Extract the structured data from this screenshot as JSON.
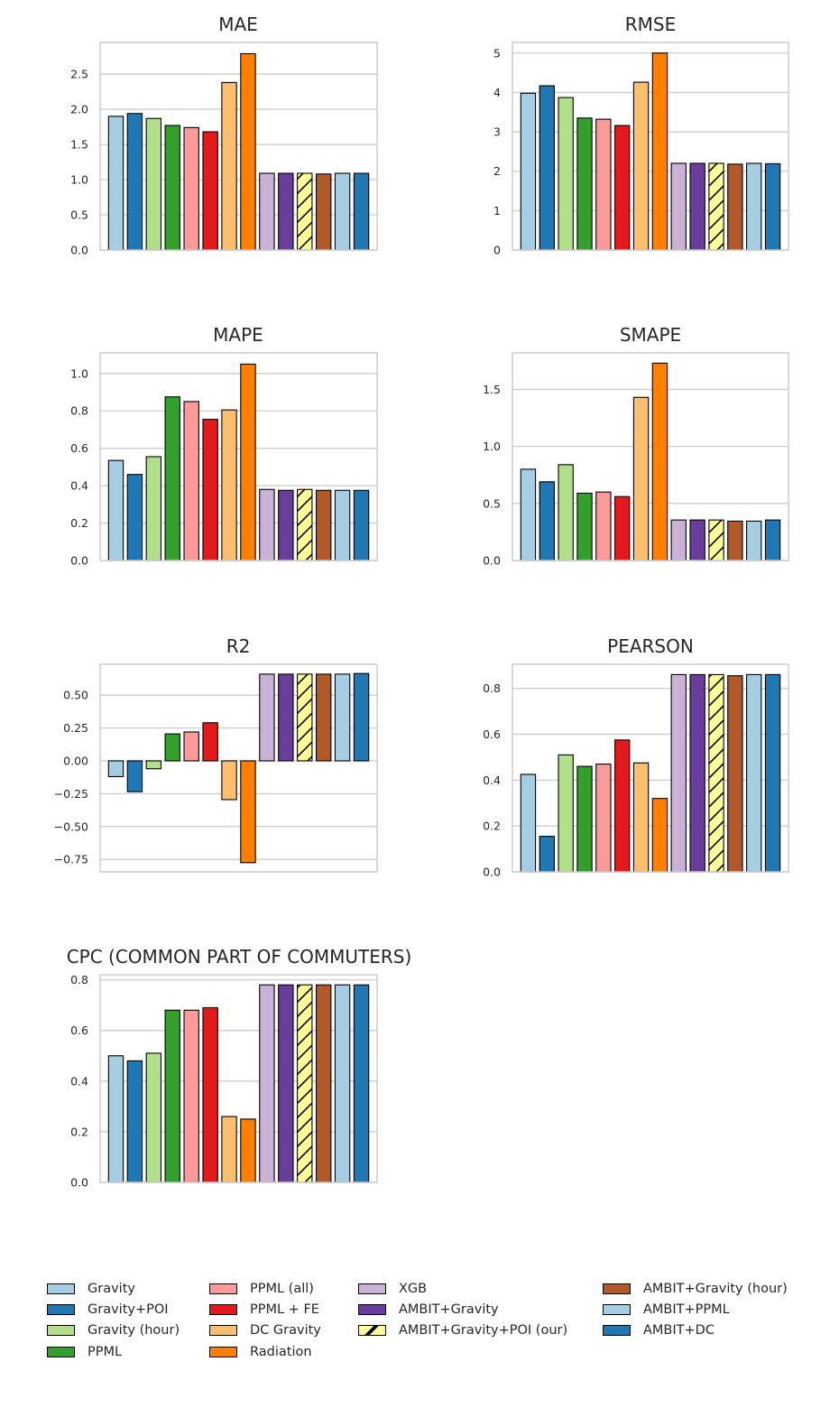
{
  "series_colors": [
    "#a6cee3",
    "#1f78b4",
    "#b2df8a",
    "#33a02c",
    "#fb9a99",
    "#e31a1c",
    "#fdbf6f",
    "#ff7f00",
    "#cab2d6",
    "#6a3d9a",
    "#ffff99",
    "#b15928",
    "#a6cee3",
    "#1f78b4"
  ],
  "legend": [
    {
      "label": "Gravity",
      "color": "#a6cee3"
    },
    {
      "label": "Gravity+POI",
      "color": "#1f78b4"
    },
    {
      "label": "Gravity (hour)",
      "color": "#b2df8a"
    },
    {
      "label": "PPML",
      "color": "#33a02c"
    },
    {
      "label": "PPML (all)",
      "color": "#fb9a99"
    },
    {
      "label": "PPML + FE",
      "color": "#e31a1c"
    },
    {
      "label": "DC Gravity",
      "color": "#fdbf6f"
    },
    {
      "label": "Radiation",
      "color": "#ff7f00"
    },
    {
      "label": "XGB",
      "color": "#cab2d6"
    },
    {
      "label": "AMBIT+Gravity",
      "color": "#6a3d9a"
    },
    {
      "label": "AMBIT+Gravity+POI (our)",
      "color": "#ffff99",
      "hatch": true
    },
    {
      "label": "AMBIT+Gravity (hour)",
      "color": "#b15928"
    },
    {
      "label": "AMBIT+PPML",
      "color": "#a6cee3"
    },
    {
      "label": "AMBIT+DC",
      "color": "#1f78b4"
    }
  ],
  "chart_data": [
    {
      "type": "bar",
      "title": "MAE",
      "categories": [
        "Gravity",
        "Gravity+POI",
        "Gravity (hour)",
        "PPML",
        "PPML (all)",
        "PPML + FE",
        "DC Gravity",
        "Radiation",
        "XGB",
        "AMBIT+Gravity",
        "AMBIT+Gravity+POI (our)",
        "AMBIT+Gravity (hour)",
        "AMBIT+PPML",
        "AMBIT+DC"
      ],
      "values": [
        1.9,
        1.94,
        1.87,
        1.77,
        1.74,
        1.68,
        2.38,
        2.79,
        1.09,
        1.09,
        1.09,
        1.08,
        1.09,
        1.09
      ],
      "ylim": [
        0,
        2.95
      ],
      "yticks": [
        0.0,
        0.5,
        1.0,
        1.5,
        2.0,
        2.5
      ],
      "tick_labels": [
        "0.0",
        "0.5",
        "1.0",
        "1.5",
        "2.0",
        "2.5"
      ],
      "grid": true
    },
    {
      "type": "bar",
      "title": "RMSE",
      "categories": [
        "Gravity",
        "Gravity+POI",
        "Gravity (hour)",
        "PPML",
        "PPML (all)",
        "PPML + FE",
        "DC Gravity",
        "Radiation",
        "XGB",
        "AMBIT+Gravity",
        "AMBIT+Gravity+POI (our)",
        "AMBIT+Gravity (hour)",
        "AMBIT+PPML",
        "AMBIT+DC"
      ],
      "values": [
        3.98,
        4.17,
        3.87,
        3.35,
        3.32,
        3.16,
        4.26,
        5.0,
        2.2,
        2.2,
        2.2,
        2.18,
        2.2,
        2.19
      ],
      "ylim": [
        0,
        5.27
      ],
      "yticks": [
        0,
        1,
        2,
        3,
        4,
        5
      ],
      "tick_labels": [
        "0",
        "1",
        "2",
        "3",
        "4",
        "5"
      ],
      "grid": true
    },
    {
      "type": "bar",
      "title": "MAPE",
      "categories": [
        "Gravity",
        "Gravity+POI",
        "Gravity (hour)",
        "PPML",
        "PPML (all)",
        "PPML + FE",
        "DC Gravity",
        "Radiation",
        "XGB",
        "AMBIT+Gravity",
        "AMBIT+Gravity+POI (our)",
        "AMBIT+Gravity (hour)",
        "AMBIT+PPML",
        "AMBIT+DC"
      ],
      "values": [
        0.535,
        0.46,
        0.555,
        0.875,
        0.85,
        0.755,
        0.805,
        1.05,
        0.38,
        0.375,
        0.38,
        0.375,
        0.375,
        0.375
      ],
      "ylim": [
        0,
        1.11
      ],
      "yticks": [
        0.0,
        0.2,
        0.4,
        0.6,
        0.8,
        1.0
      ],
      "tick_labels": [
        "0.0",
        "0.2",
        "0.4",
        "0.6",
        "0.8",
        "1.0"
      ],
      "grid": true
    },
    {
      "type": "bar",
      "title": "SMAPE",
      "categories": [
        "Gravity",
        "Gravity+POI",
        "Gravity (hour)",
        "PPML",
        "PPML (all)",
        "PPML + FE",
        "DC Gravity",
        "Radiation",
        "XGB",
        "AMBIT+Gravity",
        "AMBIT+Gravity+POI (our)",
        "AMBIT+Gravity (hour)",
        "AMBIT+PPML",
        "AMBIT+DC"
      ],
      "values": [
        0.8,
        0.69,
        0.84,
        0.59,
        0.6,
        0.56,
        1.43,
        1.73,
        0.355,
        0.355,
        0.355,
        0.345,
        0.345,
        0.355
      ],
      "ylim": [
        0,
        1.82
      ],
      "yticks": [
        0.0,
        0.5,
        1.0,
        1.5
      ],
      "tick_labels": [
        "0.0",
        "0.5",
        "1.0",
        "1.5"
      ],
      "grid": true
    },
    {
      "type": "bar",
      "title": "R2",
      "categories": [
        "Gravity",
        "Gravity+POI",
        "Gravity (hour)",
        "PPML",
        "PPML (all)",
        "PPML + FE",
        "DC Gravity",
        "Radiation",
        "XGB",
        "AMBIT+Gravity",
        "AMBIT+Gravity+POI (our)",
        "AMBIT+Gravity (hour)",
        "AMBIT+PPML",
        "AMBIT+DC"
      ],
      "values": [
        -0.12,
        -0.235,
        -0.06,
        0.205,
        0.22,
        0.29,
        -0.295,
        -0.775,
        0.66,
        0.66,
        0.66,
        0.66,
        0.66,
        0.665
      ],
      "ylim": [
        -0.845,
        0.735
      ],
      "yticks": [
        -0.75,
        -0.5,
        -0.25,
        0.0,
        0.25,
        0.5
      ],
      "tick_labels": [
        "−0.75",
        "−0.50",
        "−0.25",
        "0.00",
        "0.25",
        "0.50"
      ],
      "grid": true
    },
    {
      "type": "bar",
      "title": "PEARSON",
      "categories": [
        "Gravity",
        "Gravity+POI",
        "Gravity (hour)",
        "PPML",
        "PPML (all)",
        "PPML + FE",
        "DC Gravity",
        "Radiation",
        "XGB",
        "AMBIT+Gravity",
        "AMBIT+Gravity+POI (our)",
        "AMBIT+Gravity (hour)",
        "AMBIT+PPML",
        "AMBIT+DC"
      ],
      "values": [
        0.425,
        0.155,
        0.51,
        0.46,
        0.47,
        0.575,
        0.475,
        0.32,
        0.86,
        0.86,
        0.86,
        0.855,
        0.86,
        0.86
      ],
      "ylim": [
        0,
        0.905
      ],
      "yticks": [
        0.0,
        0.2,
        0.4,
        0.6,
        0.8
      ],
      "tick_labels": [
        "0.0",
        "0.2",
        "0.4",
        "0.6",
        "0.8"
      ],
      "grid": true
    },
    {
      "type": "bar",
      "title": "CPC (COMMON PART OF COMMUTERS)",
      "categories": [
        "Gravity",
        "Gravity+POI",
        "Gravity (hour)",
        "PPML",
        "PPML (all)",
        "PPML + FE",
        "DC Gravity",
        "Radiation",
        "XGB",
        "AMBIT+Gravity",
        "AMBIT+Gravity+POI (our)",
        "AMBIT+Gravity (hour)",
        "AMBIT+PPML",
        "AMBIT+DC"
      ],
      "values": [
        0.5,
        0.48,
        0.51,
        0.68,
        0.68,
        0.69,
        0.26,
        0.25,
        0.78,
        0.78,
        0.78,
        0.78,
        0.78,
        0.78
      ],
      "ylim": [
        0,
        0.82
      ],
      "yticks": [
        0.0,
        0.2,
        0.4,
        0.6,
        0.8
      ],
      "tick_labels": [
        "0.0",
        "0.2",
        "0.4",
        "0.6",
        "0.8"
      ],
      "grid": true
    }
  ]
}
